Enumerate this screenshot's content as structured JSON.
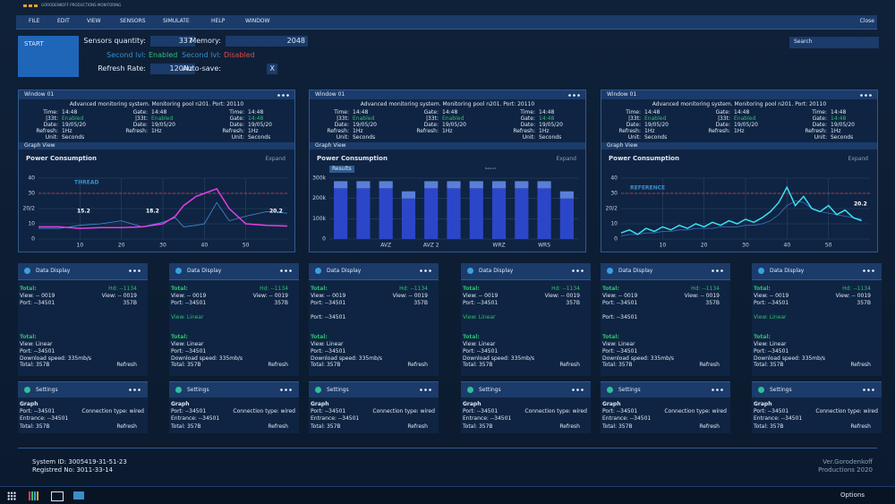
{
  "brand": "GORODENKOFF PRODUCTIONS MONITORING",
  "menu": {
    "items": [
      "FILE",
      "EDIT",
      "VIEW",
      "SENSORS",
      "SIMULATE",
      "HELP",
      "WINDOW"
    ],
    "close": "Close"
  },
  "header": {
    "start": "START",
    "search": "Search",
    "fields": [
      {
        "label": "Sensors quantity:",
        "value": 337
      },
      {
        "label": "Second lvl:",
        "value": "Enabled"
      },
      {
        "label": "Refresh Rate:",
        "value": "120Hz"
      },
      {
        "label": "Memory:",
        "value": 2048
      },
      {
        "label": "Second lvl:",
        "value": "Disabled"
      },
      {
        "label": "Auto-save:",
        "value": "X"
      }
    ]
  },
  "windows": [
    {
      "title": "Window 01",
      "info": "Advanced monitoring system. Monitoring pool n201. Port: 20110",
      "left": [
        [
          "Time:",
          "14:48"
        ],
        [
          "|33t:",
          "Enabled"
        ],
        [
          "Date:",
          "19/05/20"
        ],
        [
          "Refresh:",
          "1Hz"
        ],
        [
          "Unit:",
          "Seconds"
        ]
      ],
      "mid": [
        [
          "Gate:",
          "14:48"
        ],
        [
          "|33t:",
          "Enabled"
        ],
        [
          "Date:",
          "19/05/20"
        ],
        [
          "Refresh:",
          "1Hz"
        ]
      ],
      "right": [
        [
          "Time:",
          "14:48"
        ],
        [
          "Gate:",
          "14:48"
        ],
        [
          "Date:",
          "19/05/20"
        ],
        [
          "Refresh:",
          "1Hz"
        ],
        [
          "Unit:",
          "Seconds"
        ]
      ],
      "view": "Graph View",
      "expand": "Expand",
      "chart": {
        "type": "line",
        "title": "Power Consumption",
        "x": [
          0,
          5,
          10,
          15,
          20,
          25,
          30,
          33,
          35,
          38,
          40,
          43,
          46,
          50,
          55,
          60
        ],
        "series": [
          {
            "color": "#e43ee4",
            "values": [
              8,
              8,
              7,
              7.5,
              7.5,
              8,
              10,
              15,
              22,
              28,
              30,
              33,
              20,
              10,
              9,
              8.5
            ]
          },
          {
            "color": "#3d8fd8",
            "values": [
              7,
              7,
              9,
              10,
              12,
              8,
              11,
              14,
              8,
              9,
              10,
              24,
              12,
              15,
              18,
              17
            ]
          }
        ],
        "xlim": [
          0,
          60
        ],
        "ylim": [
          0,
          40
        ],
        "xticks": [
          10,
          20,
          30,
          40,
          50
        ],
        "yticks": [
          0,
          10,
          {
            "value": 20,
            "label": "20/2"
          },
          30,
          40
        ],
        "grid": true,
        "threshold": 30,
        "annotations": [
          "THREAD",
          "15.2",
          "18.2",
          "20.2"
        ]
      }
    },
    {
      "title": "Window 01",
      "info": "Advanced monitoring system. Monitoring pool n201. Port: 20110",
      "left": [
        [
          "Time:",
          "14:48"
        ],
        [
          "|33t:",
          "Enabled"
        ],
        [
          "Date:",
          "19/05/20"
        ],
        [
          "Refresh:",
          "1Hz"
        ],
        [
          "Unit:",
          "Seconds"
        ]
      ],
      "mid": [
        [
          "Gate:",
          "14:48"
        ],
        [
          "|33t:",
          "Enabled"
        ],
        [
          "Date:",
          "19/05/20"
        ],
        [
          "Refresh:",
          "1Hz"
        ]
      ],
      "right": [
        [
          "Time:",
          "14:48"
        ],
        [
          "Gate:",
          "14:48"
        ],
        [
          "Date:",
          "19/05/20"
        ],
        [
          "Refresh:",
          "1Hz"
        ],
        [
          "Unit:",
          "Seconds"
        ]
      ],
      "view": "Graph View",
      "expand": "Expand",
      "chart": {
        "type": "bar",
        "title": "Power Consumption",
        "badge": "Results",
        "subtitle": "Network",
        "categories": [
          null,
          null,
          "AVZ",
          null,
          "AVZ 2",
          null,
          null,
          "WRZ",
          null,
          "WRS",
          null
        ],
        "series": [
          {
            "color": "#2c46c9",
            "values": [
              250000,
              250000,
              250000,
              200000,
              250000,
              250000,
              250000,
              250000,
              250000,
              250000,
              200000
            ]
          },
          {
            "color": "#5b7fd8",
            "values": [
              35000,
              35000,
              35000,
              35000,
              35000,
              35000,
              35000,
              35000,
              35000,
              35000,
              35000
            ]
          }
        ],
        "ylim": [
          0,
          300000
        ],
        "yticks": [
          0,
          {
            "value": 100000,
            "label": "100k"
          },
          {
            "value": 200000,
            "label": "200k"
          },
          {
            "value": 300000,
            "label": "300k"
          }
        ],
        "grid": true
      }
    },
    {
      "title": "Window 01",
      "info": "Advanced monitoring system. Monitoring pool n201. Port: 20110",
      "left": [
        [
          "Time:",
          "14:48"
        ],
        [
          "|33t:",
          "Enabled"
        ],
        [
          "Date:",
          "19/05/20"
        ],
        [
          "Refresh:",
          "1Hz"
        ],
        [
          "Unit:",
          "Seconds"
        ]
      ],
      "mid": [
        [
          "Gate:",
          "14:48"
        ],
        [
          "|33t:",
          "Enabled"
        ],
        [
          "Date:",
          "19/05/20"
        ],
        [
          "Refresh:",
          "1Hz"
        ]
      ],
      "right": [
        [
          "Time:",
          "14:48"
        ],
        [
          "Gate:",
          "14:48"
        ],
        [
          "Date:",
          "19/05/20"
        ],
        [
          "Refresh:",
          "1Hz"
        ],
        [
          "Unit:",
          "Seconds"
        ]
      ],
      "view": "Graph View",
      "expand": "Expand",
      "chart": {
        "type": "line",
        "title": "Power Consumption",
        "x": [
          0,
          2,
          4,
          6,
          8,
          10,
          12,
          14,
          16,
          18,
          20,
          22,
          24,
          26,
          28,
          30,
          32,
          34,
          36,
          38,
          40,
          42,
          44,
          46,
          48,
          50,
          52,
          54,
          56,
          58
        ],
        "series": [
          {
            "color": "#39e0f0",
            "values": [
              4,
              6,
              3,
              7,
              5,
              8,
              6,
              9,
              7,
              10,
              8,
              11,
              9,
              12,
              10,
              13,
              11,
              14,
              18,
              24,
              34,
              22,
              28,
              20,
              18,
              22,
              16,
              19,
              14,
              12
            ]
          },
          {
            "color": "#3d6fc8",
            "values": [
              2,
              3,
              3,
              4,
              4,
              5,
              5,
              6,
              6,
              7,
              7,
              7,
              8,
              8,
              8,
              9,
              9,
              10,
              12,
              16,
              22,
              25,
              24,
              20,
              18,
              17,
              16,
              15,
              14,
              13
            ]
          }
        ],
        "xlim": [
          0,
          60
        ],
        "ylim": [
          0,
          40
        ],
        "xticks": [
          10,
          20,
          30,
          40,
          50
        ],
        "yticks": [
          0,
          10,
          {
            "value": 20,
            "label": "20/2"
          },
          30,
          40
        ],
        "grid": true,
        "threshold": 30,
        "annotations": [
          "REFERENCE",
          "20.2"
        ]
      }
    }
  ],
  "displays": [
    {
      "title": "Data Display",
      "top": [
        [
          "Total:",
          "Hd: --1134"
        ],
        [
          "View: -- 0019",
          "View: -- 0019"
        ],
        [
          "Port: --34501",
          "357B"
        ]
      ],
      "mid": null,
      "bottom": [
        "View: Linear",
        "Port: --34501",
        "Download speed: 335mb/s"
      ],
      "label": "Total:",
      "total": "Total: 357B",
      "refresh": "Refresh"
    },
    {
      "title": "Data Display",
      "top": [
        [
          "Total:",
          "Hd: --1134"
        ],
        [
          "View: -- 0019",
          "View: -- 0019"
        ],
        [
          "Port: --34501",
          "357B"
        ]
      ],
      "mid": "View: Linear",
      "bottom": [
        "View: Linear",
        "Port: --34501",
        "Download speed: 335mb/s"
      ],
      "label": "Total:",
      "total": "Total: 357B",
      "refresh": "Refresh"
    },
    {
      "title": "Data Display",
      "top": [
        [
          "Total:",
          "Hd: --1134"
        ],
        [
          "View: -- 0019",
          "View: -- 0019"
        ],
        [
          "Port: --34501",
          "357B"
        ]
      ],
      "mid": "Port: --34501",
      "bottom": [
        "View: Linear",
        "Port: --34501",
        "Download speed: 335mb/s"
      ],
      "label": "Total:",
      "total": "Total: 357B",
      "refresh": "Refresh"
    },
    {
      "title": "Data Display",
      "top": [
        [
          "Total:",
          "Hd: --1134"
        ],
        [
          "View: -- 0019",
          "View: -- 0019"
        ],
        [
          "Port: --34501",
          "357B"
        ]
      ],
      "mid": "View: Linear",
      "bottom": [
        "View: Linear",
        "Port: --34501",
        "Download speed: 335mb/s"
      ],
      "label": "Total:",
      "total": "Total: 357B",
      "refresh": "Refresh"
    },
    {
      "title": "Data Display",
      "top": [
        [
          "Total:",
          "Hd: --1134"
        ],
        [
          "View: -- 0019",
          "View: -- 0019"
        ],
        [
          "Port: --34501",
          "357B"
        ]
      ],
      "mid": "Port: --34501",
      "bottom": [
        "View: Linear",
        "Port: --34501",
        "Download speed: 335mb/s"
      ],
      "label": "Total:",
      "total": "Total: 357B",
      "refresh": "Refresh"
    },
    {
      "title": "Data Display",
      "top": [
        [
          "Total:",
          "Hd: --1134"
        ],
        [
          "View: -- 0019",
          "View: -- 0019"
        ],
        [
          "Port: --34501",
          "357B"
        ]
      ],
      "mid": "View: Linear",
      "bottom": [
        "View: Linear",
        "Port: --34501",
        "Download speed: 335mb/s"
      ],
      "label": "Total:",
      "total": "Total: 357B",
      "refresh": "Refresh"
    }
  ],
  "settings": [
    {
      "title": "Settings",
      "graph": "Graph",
      "port": "Port: --34501",
      "connection": "Connection type: wired",
      "entrance": "Entrance: --34501",
      "total": "Total: 357B",
      "refresh": "Refresh"
    },
    {
      "title": "Settings",
      "graph": "Graph",
      "port": "Port: --34501",
      "connection": "Connection type: wired",
      "entrance": "Entrance: --34501",
      "total": "Total: 357B",
      "refresh": "Refresh"
    },
    {
      "title": "Settings",
      "graph": "Graph",
      "port": "Port: --34501",
      "connection": "Connection type: wired",
      "entrance": "Entrance: --34501",
      "total": "Total: 357B",
      "refresh": "Refresh"
    },
    {
      "title": "Settings",
      "graph": "Graph",
      "port": "Port: --34501",
      "connection": "Connection type: wired",
      "entrance": "Entrance: --34501",
      "total": "Total: 357B",
      "refresh": "Refresh"
    },
    {
      "title": "Settings",
      "graph": "Graph",
      "port": "Port: --34501",
      "connection": "Connection type: wired",
      "entrance": "Entrance: --34501",
      "total": "Total: 357B",
      "refresh": "Refresh"
    },
    {
      "title": "Settings",
      "graph": "Graph",
      "port": "Port: --34501",
      "connection": "Connection type: wired",
      "entrance": "Entrance: --34501",
      "total": "Total: 357B",
      "refresh": "Refresh"
    }
  ],
  "footer": {
    "system_id": "System ID: 3005419-31-51-23",
    "registered": "Registred No: 3011-33-14",
    "version": "Ver.Gorodenkoff",
    "productions": "Productions 2020"
  },
  "taskbar": {
    "options": "Options"
  }
}
